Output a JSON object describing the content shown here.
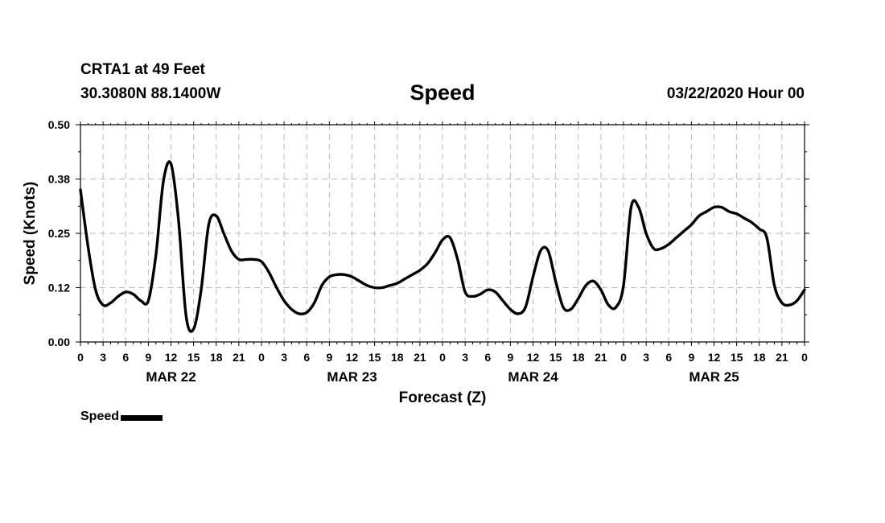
{
  "header": {
    "station": "CRTA1 at 49 Feet",
    "coords": "30.3080N 88.1400W",
    "title": "Speed",
    "datetime": "03/22/2020 Hour 00"
  },
  "legend": {
    "label": "Speed"
  },
  "chart_data": {
    "type": "line",
    "title": "Speed",
    "xlabel": "Forecast (Z)",
    "ylabel": "Speed (Knots)",
    "ylim": [
      0,
      0.5
    ],
    "yticks": [
      "0.00",
      "0.12",
      "0.25",
      "0.38",
      "0.50"
    ],
    "xlim": [
      0,
      96
    ],
    "xtick_hours": [
      "0",
      "3",
      "6",
      "9",
      "12",
      "15",
      "18",
      "21",
      "0",
      "3",
      "6",
      "9",
      "12",
      "15",
      "18",
      "21",
      "0",
      "3",
      "6",
      "9",
      "12",
      "15",
      "18",
      "21",
      "0",
      "3",
      "6",
      "9",
      "12",
      "15",
      "18",
      "21",
      "0"
    ],
    "day_labels": [
      {
        "label": "MAR 22",
        "hour": 12
      },
      {
        "label": "MAR 23",
        "hour": 36
      },
      {
        "label": "MAR 24",
        "hour": 60
      },
      {
        "label": "MAR 25",
        "hour": 84
      }
    ],
    "grid": true,
    "legend_position": "bottom-left",
    "series": [
      {
        "name": "Speed",
        "color": "#000000",
        "x": [
          0,
          1,
          2,
          3,
          4,
          5,
          6,
          7,
          8,
          9,
          10,
          11,
          12,
          13,
          14,
          15,
          16,
          17,
          18,
          19,
          20,
          21,
          22,
          23,
          24,
          25,
          26,
          27,
          28,
          29,
          30,
          31,
          32,
          33,
          34,
          35,
          36,
          37,
          38,
          39,
          40,
          41,
          42,
          43,
          44,
          45,
          46,
          47,
          48,
          49,
          50,
          51,
          52,
          53,
          54,
          55,
          56,
          57,
          58,
          59,
          60,
          61,
          62,
          63,
          64,
          65,
          66,
          67,
          68,
          69,
          70,
          71,
          72,
          73,
          74,
          75,
          76,
          77,
          78,
          79,
          80,
          81,
          82,
          83,
          84,
          85,
          86,
          87,
          88,
          89,
          90,
          91,
          92,
          93,
          94,
          95,
          96
        ],
        "y": [
          0.35,
          0.22,
          0.12,
          0.085,
          0.09,
          0.105,
          0.115,
          0.11,
          0.095,
          0.095,
          0.2,
          0.37,
          0.41,
          0.28,
          0.06,
          0.03,
          0.12,
          0.27,
          0.29,
          0.25,
          0.21,
          0.19,
          0.19,
          0.19,
          0.185,
          0.16,
          0.125,
          0.095,
          0.075,
          0.065,
          0.068,
          0.09,
          0.13,
          0.15,
          0.155,
          0.155,
          0.15,
          0.14,
          0.13,
          0.125,
          0.125,
          0.13,
          0.135,
          0.145,
          0.155,
          0.165,
          0.18,
          0.205,
          0.235,
          0.24,
          0.19,
          0.115,
          0.105,
          0.11,
          0.12,
          0.115,
          0.095,
          0.075,
          0.065,
          0.08,
          0.15,
          0.21,
          0.21,
          0.14,
          0.08,
          0.075,
          0.1,
          0.13,
          0.14,
          0.12,
          0.085,
          0.08,
          0.13,
          0.31,
          0.31,
          0.25,
          0.215,
          0.215,
          0.225,
          0.24,
          0.255,
          0.27,
          0.29,
          0.3,
          0.31,
          0.31,
          0.3,
          0.295,
          0.285,
          0.275,
          0.26,
          0.24,
          0.13,
          0.09,
          0.085,
          0.095,
          0.12
        ]
      }
    ]
  }
}
